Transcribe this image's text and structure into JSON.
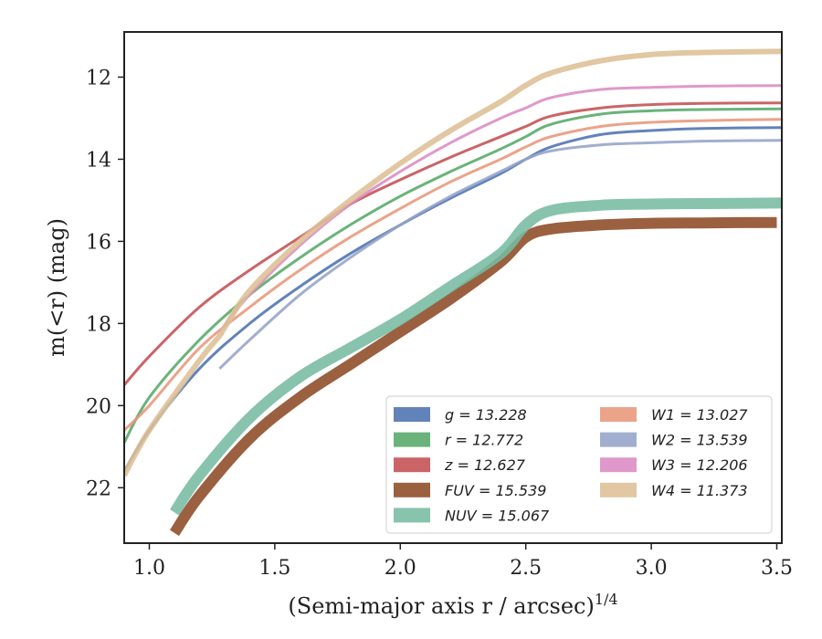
{
  "chart_data": {
    "type": "area",
    "xlabel": "(Semi-major axis r / arcsec)^1/4",
    "ylabel": "m(<r) (mag)",
    "xlim": [
      0.9,
      3.52
    ],
    "ylim": [
      23.35,
      10.9
    ],
    "y_inverted": true,
    "grid": false,
    "legend_position": "lower-right",
    "xticks": [
      1.0,
      1.5,
      2.0,
      2.5,
      3.0,
      3.5
    ],
    "xtick_labels": [
      "1.0",
      "1.5",
      "2.0",
      "2.5",
      "3.0",
      "3.5"
    ],
    "yticks": [
      12,
      14,
      16,
      18,
      20,
      22
    ],
    "ytick_labels": [
      "12",
      "14",
      "16",
      "18",
      "20",
      "22"
    ],
    "series": [
      {
        "name": "g = 13.228",
        "color": "#4C72B0",
        "width": 3,
        "x": [
          0.9,
          1.0,
          1.2,
          1.4,
          1.6,
          1.8,
          2.0,
          2.2,
          2.4,
          2.5,
          2.6,
          2.8,
          3.0,
          3.2,
          3.52
        ],
        "y": [
          21.6,
          20.6,
          19.1,
          18.0,
          17.1,
          16.3,
          15.6,
          14.95,
          14.35,
          14.0,
          13.7,
          13.4,
          13.3,
          13.25,
          13.228
        ]
      },
      {
        "name": "r = 12.772",
        "color": "#55A868",
        "width": 3,
        "x": [
          0.9,
          1.0,
          1.2,
          1.4,
          1.6,
          1.8,
          2.0,
          2.2,
          2.4,
          2.5,
          2.6,
          2.8,
          3.0,
          3.2,
          3.52
        ],
        "y": [
          20.9,
          19.8,
          18.4,
          17.3,
          16.4,
          15.6,
          14.9,
          14.3,
          13.75,
          13.45,
          13.15,
          12.9,
          12.82,
          12.79,
          12.772
        ]
      },
      {
        "name": "z = 12.627",
        "color": "#C44E52",
        "width": 3,
        "x": [
          0.9,
          1.0,
          1.2,
          1.4,
          1.6,
          1.8,
          2.0,
          2.2,
          2.4,
          2.5,
          2.6,
          2.8,
          3.0,
          3.2,
          3.52
        ],
        "y": [
          19.5,
          18.8,
          17.6,
          16.7,
          15.9,
          15.1,
          14.5,
          13.95,
          13.45,
          13.2,
          12.95,
          12.75,
          12.67,
          12.64,
          12.627
        ]
      },
      {
        "name": "FUV = 15.539",
        "color": "#8C4A26",
        "width": 12,
        "x": [
          1.1,
          1.2,
          1.4,
          1.6,
          1.8,
          2.0,
          2.2,
          2.4,
          2.5,
          2.6,
          2.8,
          3.0,
          3.2,
          3.5
        ],
        "y": [
          23.1,
          22.2,
          20.8,
          19.8,
          19.0,
          18.2,
          17.4,
          16.5,
          15.9,
          15.7,
          15.6,
          15.56,
          15.55,
          15.539
        ]
      },
      {
        "name": "NUV = 15.067",
        "color": "#76BBA2",
        "width": 12,
        "x": [
          1.1,
          1.2,
          1.4,
          1.6,
          1.8,
          2.0,
          2.2,
          2.4,
          2.5,
          2.6,
          2.8,
          3.0,
          3.2,
          3.52
        ],
        "y": [
          22.6,
          21.7,
          20.3,
          19.3,
          18.6,
          17.9,
          17.1,
          16.3,
          15.6,
          15.25,
          15.12,
          15.09,
          15.08,
          15.067
        ]
      },
      {
        "name": "W1 = 13.027",
        "color": "#E8967A",
        "width": 3,
        "x": [
          0.9,
          1.0,
          1.2,
          1.4,
          1.6,
          1.8,
          2.0,
          2.2,
          2.4,
          2.5,
          2.6,
          2.8,
          3.0,
          3.2,
          3.52
        ],
        "y": [
          20.6,
          20.0,
          18.6,
          17.6,
          16.7,
          15.9,
          15.2,
          14.55,
          14.0,
          13.7,
          13.45,
          13.2,
          13.1,
          13.06,
          13.027
        ]
      },
      {
        "name": "W2 = 13.539",
        "color": "#95A3C8",
        "width": 3,
        "x": [
          1.28,
          1.4,
          1.6,
          1.8,
          2.0,
          2.2,
          2.4,
          2.5,
          2.6,
          2.8,
          3.0,
          3.2,
          3.52
        ],
        "y": [
          19.1,
          18.4,
          17.3,
          16.4,
          15.6,
          14.9,
          14.3,
          14.0,
          13.8,
          13.65,
          13.6,
          13.56,
          13.539
        ]
      },
      {
        "name": "W3 = 12.206",
        "color": "#DA8BC3",
        "width": 3,
        "x": [
          1.28,
          1.4,
          1.6,
          1.8,
          2.0,
          2.2,
          2.4,
          2.5,
          2.6,
          2.8,
          3.0,
          3.2,
          3.52
        ],
        "y": [
          18.2,
          17.3,
          16.1,
          15.1,
          14.3,
          13.6,
          13.0,
          12.75,
          12.5,
          12.3,
          12.25,
          12.22,
          12.206
        ]
      },
      {
        "name": "W4 = 11.373",
        "color": "#DDBF95",
        "width": 6,
        "x": [
          0.9,
          1.0,
          1.2,
          1.28,
          1.3,
          1.4,
          1.6,
          1.8,
          2.0,
          2.2,
          2.4,
          2.5,
          2.6,
          2.8,
          3.0,
          3.2,
          3.52
        ],
        "y": [
          21.7,
          20.6,
          18.9,
          18.3,
          18.1,
          17.2,
          16.0,
          15.0,
          14.1,
          13.3,
          12.6,
          12.2,
          11.9,
          11.6,
          11.45,
          11.4,
          11.373
        ]
      }
    ],
    "legend": {
      "columns": [
        [
          "g = 13.228",
          "r = 12.772",
          "z = 12.627",
          "FUV = 15.539",
          "NUV = 15.067"
        ],
        [
          "W1 = 13.027",
          "W2 = 13.539",
          "W3 = 12.206",
          "W4 = 11.373"
        ]
      ]
    }
  }
}
